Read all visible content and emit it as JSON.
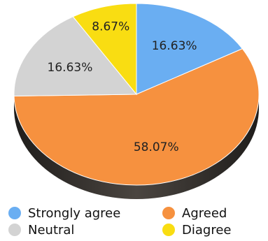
{
  "chart_data": {
    "type": "pie",
    "title": "",
    "categories": [
      "Strongly agree",
      "Agreed",
      "Neutral",
      "Diagree"
    ],
    "values": [
      16.63,
      58.07,
      16.63,
      8.67
    ],
    "labels": [
      "16.63%",
      "58.07%",
      "16.63%",
      "8.67%"
    ],
    "colors": [
      "#6aaef2",
      "#f6913f",
      "#d3d3d3",
      "#f9dd12"
    ],
    "legend_position": "bottom",
    "style": "3d-tilted"
  },
  "legend": {
    "items": [
      {
        "label": "Strongly agree",
        "color": "#6aaef2"
      },
      {
        "label": "Agreed",
        "color": "#f6913f"
      },
      {
        "label": "Neutral",
        "color": "#d3d3d3"
      },
      {
        "label": "Diagree",
        "color": "#f9dd12"
      }
    ]
  }
}
